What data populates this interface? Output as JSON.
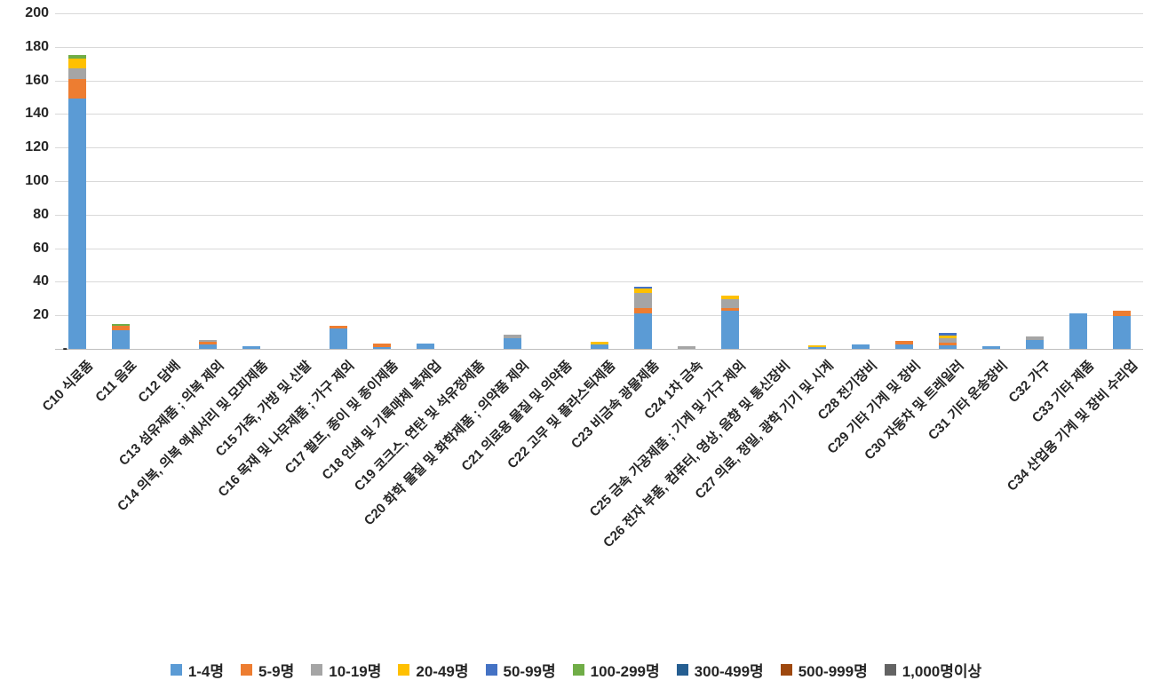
{
  "chart_data": {
    "type": "bar",
    "stacked": true,
    "title": "",
    "xlabel": "",
    "ylabel": "",
    "grid": true,
    "legend_position": "bottom",
    "y_axis": {
      "min": 0,
      "max": 200,
      "step": 20,
      "zero_label": "-"
    },
    "categories": [
      "C10 식료품",
      "C11 음료",
      "C12 담배",
      "C13 섬유제품 ; 의복 제외",
      "C14 의복, 의복 액세서리 및 모피제품",
      "C15 가죽, 가방 및 신발",
      "C16 목재 및 나무제품 ; 가구 제외",
      "C17 펄프, 종이 및 종이제품",
      "C18 인쇄 및 기록매체 복제업",
      "C19 코크스, 연탄 및 석유정제품",
      "C20 화학 물질 및 화학제품 ; 의약품 제외",
      "C21 의료용 물질 및 의약품",
      "C22 고무 및 플라스틱제품",
      "C23 비금속 광물제품",
      "C24 1차 금속",
      "C25 금속 가공제품 ; 기계 및 가구 제외",
      "C26 전자 부품, 컴퓨터, 영상, 음향 및 통신장비",
      "C27 의료, 정밀, 광학 기기 및 시계",
      "C28 전기장비",
      "C29 기타 기계 및 장비",
      "C30 자동차 및 트레일러",
      "C31 기타 운송장비",
      "C32 가구",
      "C33 기타 제품",
      "C34 산업용 기계 및 장비 수리업"
    ],
    "series": [
      {
        "name": "1-4명",
        "color": "#5B9BD5",
        "values": [
          149,
          11,
          0,
          2.5,
          1.5,
          0,
          12,
          1,
          3,
          0,
          6.5,
          0,
          2.5,
          21,
          0,
          22.5,
          0,
          1,
          2.5,
          2.5,
          2,
          1.5,
          5.5,
          21,
          19.5
        ]
      },
      {
        "name": "5-9명",
        "color": "#ED7D31",
        "values": [
          12,
          2.5,
          0,
          1.5,
          0,
          0,
          1.5,
          2,
          0,
          0,
          0,
          0,
          0,
          3.5,
          0,
          2,
          0,
          0,
          0,
          2,
          1.5,
          0,
          0,
          0,
          3
        ]
      },
      {
        "name": "10-19명",
        "color": "#A5A5A5",
        "values": [
          6,
          0,
          0,
          1.5,
          0,
          0,
          0,
          0,
          0,
          0,
          2,
          0,
          0,
          9,
          1.5,
          5,
          0,
          0,
          0,
          0,
          3,
          0,
          2,
          0,
          0
        ]
      },
      {
        "name": "20-49명",
        "color": "#FFC000",
        "values": [
          6,
          0,
          0,
          0,
          0,
          0,
          0,
          0,
          0,
          0,
          0,
          0,
          1.5,
          2.5,
          0,
          2,
          0,
          1,
          0,
          0,
          1.5,
          0,
          0,
          0,
          0
        ]
      },
      {
        "name": "50-99명",
        "color": "#4472C4",
        "values": [
          0,
          0,
          0,
          0,
          0,
          0,
          0,
          0,
          0,
          0,
          0,
          0,
          0,
          1,
          0,
          0,
          0,
          0,
          0,
          0,
          1.5,
          0,
          0,
          0,
          0
        ]
      },
      {
        "name": "100-299명",
        "color": "#70AD47",
        "values": [
          2,
          1.5,
          0,
          0,
          0,
          0,
          0,
          0,
          0,
          0,
          0,
          0,
          0,
          0,
          0,
          0,
          0,
          0,
          0,
          0,
          0,
          0,
          0,
          0,
          0
        ]
      },
      {
        "name": "300-499명",
        "color": "#255E91",
        "values": [
          0,
          0,
          0,
          0,
          0,
          0,
          0,
          0,
          0,
          0,
          0,
          0,
          0,
          0,
          0,
          0,
          0,
          0,
          0,
          0,
          0,
          0,
          0,
          0,
          0
        ]
      },
      {
        "name": "500-999명",
        "color": "#9E480E",
        "values": [
          0,
          0,
          0,
          0,
          0,
          0,
          0,
          0,
          0,
          0,
          0,
          0,
          0,
          0,
          0,
          0,
          0,
          0,
          0,
          0,
          0,
          0,
          0,
          0,
          0
        ]
      },
      {
        "name": "1,000명이상",
        "color": "#636363",
        "values": [
          0,
          0,
          0,
          0,
          0,
          0,
          0,
          0,
          0,
          0,
          0,
          0,
          0,
          0,
          0,
          0,
          0,
          0,
          0,
          0,
          0,
          0,
          0,
          0,
          0
        ]
      }
    ]
  }
}
